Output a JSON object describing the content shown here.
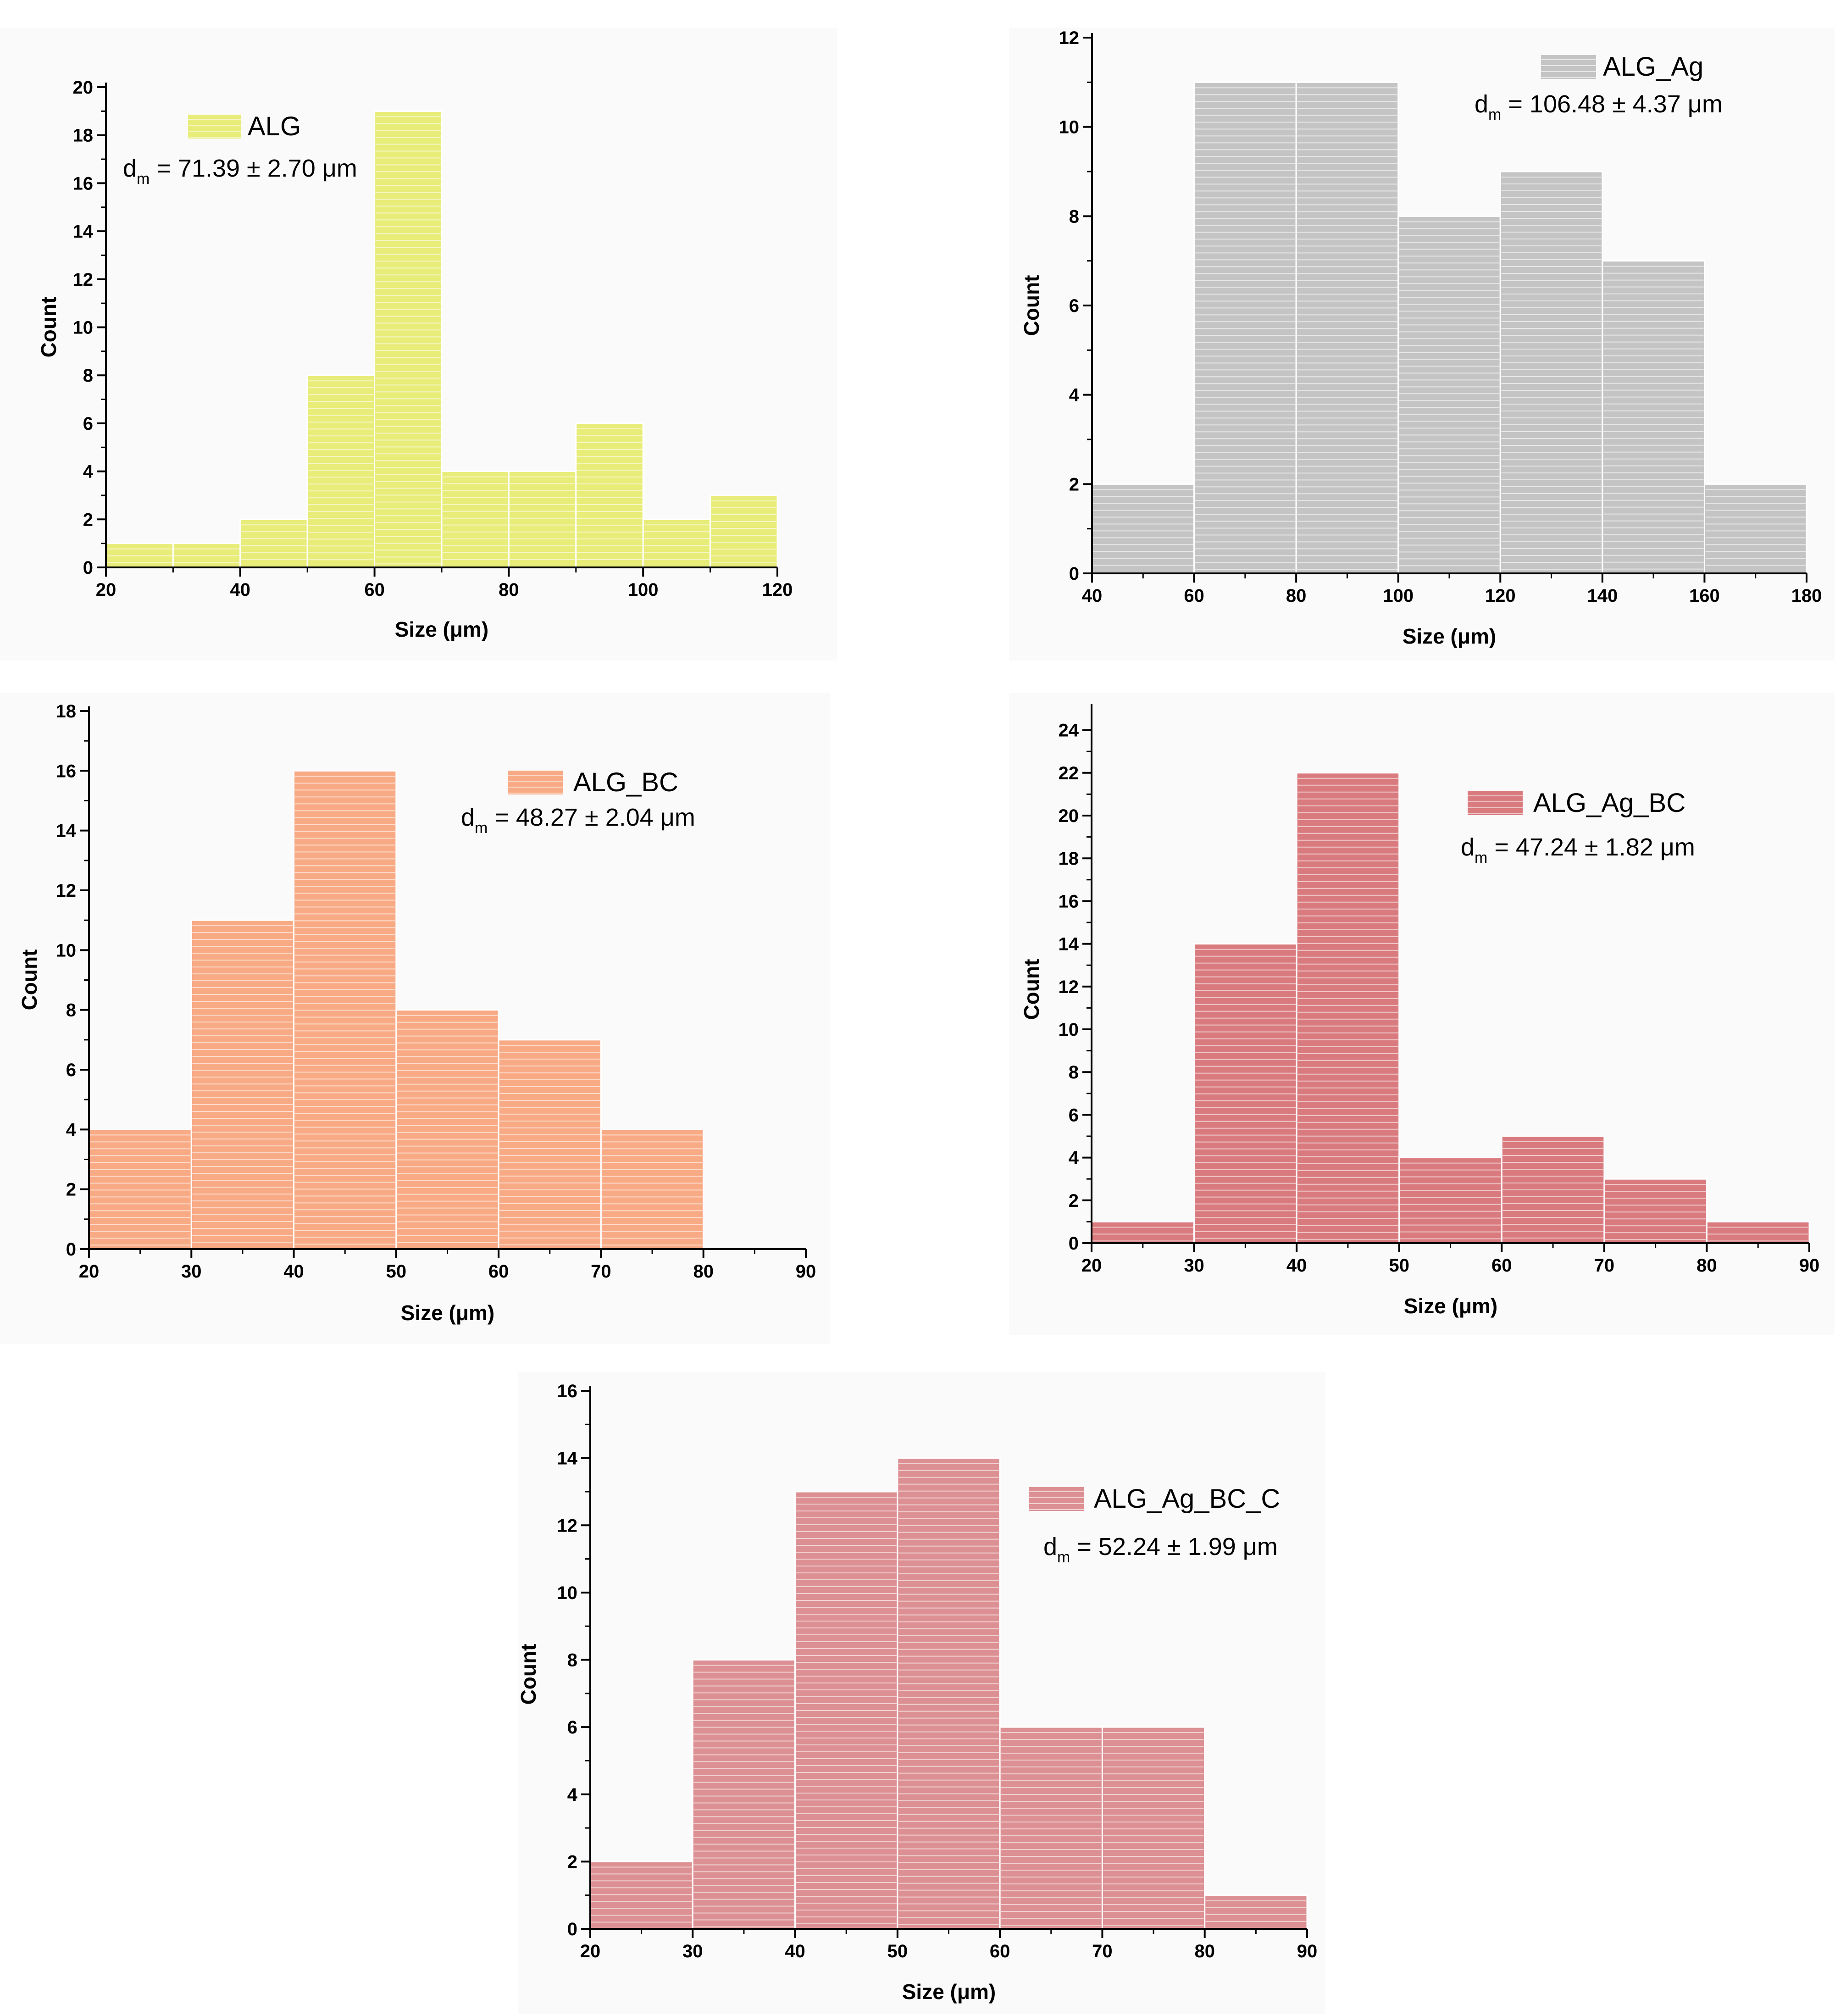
{
  "chart_data": [
    {
      "type": "bar",
      "title": "",
      "legend": "ALG",
      "dm_prefix": "d",
      "dm_sub": "m",
      "dm_value": " = 71.39 ± 2.70 μm",
      "xlabel": "Size (μm)",
      "ylabel": "Count",
      "bins": [
        [
          20,
          30
        ],
        [
          30,
          40
        ],
        [
          40,
          50
        ],
        [
          50,
          60
        ],
        [
          60,
          70
        ],
        [
          70,
          80
        ],
        [
          80,
          90
        ],
        [
          90,
          100
        ],
        [
          100,
          110
        ],
        [
          110,
          120
        ]
      ],
      "values": [
        1,
        1,
        2,
        8,
        19,
        4,
        4,
        6,
        2,
        3
      ],
      "xlim": [
        20,
        120
      ],
      "ylim": [
        0,
        20
      ],
      "xticks": [
        20,
        40,
        60,
        80,
        100,
        120
      ],
      "yticks": [
        0,
        2,
        4,
        6,
        8,
        10,
        12,
        14,
        16,
        18,
        20
      ],
      "color": "#e8ec78",
      "legend_color": "#e8ec78"
    },
    {
      "type": "bar",
      "title": "",
      "legend": "ALG_Ag",
      "dm_prefix": "d",
      "dm_sub": "m",
      "dm_value": " = 106.48 ± 4.37 μm",
      "xlabel": "Size (μm)",
      "ylabel": "Count",
      "bins": [
        [
          40,
          60
        ],
        [
          60,
          80
        ],
        [
          80,
          100
        ],
        [
          100,
          120
        ],
        [
          120,
          140
        ],
        [
          140,
          160
        ],
        [
          160,
          180
        ]
      ],
      "values": [
        2,
        11,
        11,
        8,
        9,
        7,
        2
      ],
      "xlim": [
        40,
        180
      ],
      "ylim": [
        0,
        12
      ],
      "xticks": [
        40,
        60,
        80,
        100,
        120,
        140,
        160,
        180
      ],
      "yticks": [
        0,
        2,
        4,
        6,
        8,
        10,
        12
      ],
      "color": "#c4c4c4",
      "legend_color": "#c4c4c4"
    },
    {
      "type": "bar",
      "title": "",
      "legend": "ALG_BC",
      "dm_prefix": "d",
      "dm_sub": "m",
      "dm_value": " = 48.27 ± 2.04  μm",
      "xlabel": "Size (μm)",
      "ylabel": "Count",
      "bins": [
        [
          20,
          30
        ],
        [
          30,
          40
        ],
        [
          40,
          50
        ],
        [
          50,
          60
        ],
        [
          60,
          70
        ],
        [
          70,
          80
        ]
      ],
      "values": [
        4,
        11,
        16,
        8,
        7,
        4
      ],
      "xlim": [
        20,
        90
      ],
      "ylim": [
        0,
        18
      ],
      "xticks": [
        20,
        30,
        40,
        50,
        60,
        70,
        80,
        90
      ],
      "yticks": [
        0,
        2,
        4,
        6,
        8,
        10,
        12,
        14,
        16,
        18
      ],
      "color": "#f8aa85",
      "legend_color": "#f8aa85"
    },
    {
      "type": "bar",
      "title": "",
      "legend": "ALG_Ag_BC",
      "dm_prefix": "d",
      "dm_sub": "m",
      "dm_value": " = 47.24 ± 1.82 μm",
      "xlabel": "Size (μm)",
      "ylabel": "Count",
      "bins": [
        [
          20,
          30
        ],
        [
          30,
          40
        ],
        [
          40,
          50
        ],
        [
          50,
          60
        ],
        [
          60,
          70
        ],
        [
          70,
          80
        ],
        [
          80,
          90
        ]
      ],
      "values": [
        1,
        14,
        22,
        4,
        5,
        3,
        1
      ],
      "xlim": [
        20,
        90
      ],
      "ylim": [
        0,
        25
      ],
      "xticks": [
        20,
        30,
        40,
        50,
        60,
        70,
        80,
        90
      ],
      "yticks": [
        0,
        2,
        4,
        6,
        8,
        10,
        12,
        14,
        16,
        18,
        20,
        22,
        24
      ],
      "color": "#d97a7e",
      "legend_color": "#d97a7e"
    },
    {
      "type": "bar",
      "title": "",
      "legend": "ALG_Ag_BC_C",
      "dm_prefix": "d",
      "dm_sub": "m",
      "dm_value": " = 52.24 ± 1.99 μm",
      "xlabel": "Size (μm)",
      "ylabel": "Count",
      "bins": [
        [
          20,
          30
        ],
        [
          30,
          40
        ],
        [
          40,
          50
        ],
        [
          50,
          60
        ],
        [
          60,
          70
        ],
        [
          70,
          80
        ],
        [
          80,
          90
        ]
      ],
      "values": [
        2,
        8,
        13,
        14,
        6,
        6,
        1
      ],
      "xlim": [
        20,
        90
      ],
      "ylim": [
        0,
        16
      ],
      "xticks": [
        20,
        30,
        40,
        50,
        60,
        70,
        80,
        90
      ],
      "yticks": [
        0,
        2,
        4,
        6,
        8,
        10,
        12,
        14,
        16
      ],
      "color": "#dc9093",
      "legend_color": "#dc9093"
    }
  ]
}
